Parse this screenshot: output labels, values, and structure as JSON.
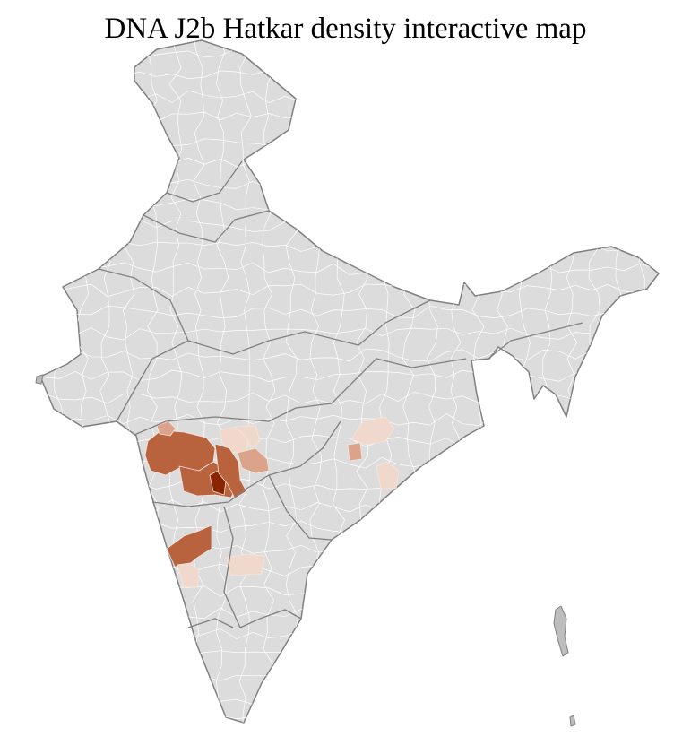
{
  "title": "DNA J2b Hatkar density interactive map",
  "colors": {
    "land": "#dcdcdc",
    "state_border": "#808080",
    "district_border": "#ffffff",
    "density_levels": [
      "#f0d8cc",
      "#dba48a",
      "#b8623e",
      "#8b2500"
    ]
  },
  "highlighted_regions": [
    {
      "level": 2
    },
    {
      "level": 2
    },
    {
      "level": 1
    },
    {
      "level": 0
    },
    {
      "level": 3
    },
    {
      "level": 2
    },
    {
      "level": 0
    },
    {
      "level": 0
    },
    {
      "level": 0
    },
    {
      "level": 1
    },
    {
      "level": 0
    },
    {
      "level": 1
    }
  ]
}
